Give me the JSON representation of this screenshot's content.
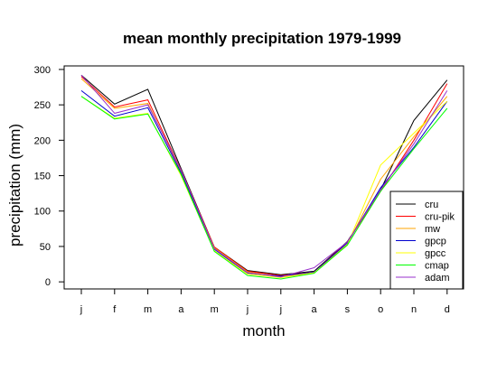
{
  "chart_data": {
    "type": "line",
    "title": "mean monthly precipitation 1979-1999",
    "xlabel": "month",
    "ylabel": "precipitation (mm)",
    "categories": [
      "j",
      "f",
      "m",
      "a",
      "m",
      "j",
      "j",
      "a",
      "s",
      "o",
      "n",
      "d"
    ],
    "ylim": [
      -10,
      305
    ],
    "yticks": [
      0,
      50,
      100,
      150,
      200,
      250,
      300
    ],
    "legend_position": "bottom-right",
    "grid": false,
    "series": [
      {
        "name": "cru",
        "color": "#000000",
        "values": [
          292,
          251,
          272,
          160,
          49,
          16,
          10,
          15,
          57,
          130,
          228,
          285
        ]
      },
      {
        "name": "cru-pik",
        "color": "#ff0000",
        "values": [
          290,
          247,
          257,
          158,
          49,
          15,
          9,
          14,
          56,
          128,
          200,
          280
        ]
      },
      {
        "name": "mw",
        "color": "#ffa500",
        "values": [
          287,
          245,
          252,
          156,
          48,
          14,
          7,
          13,
          53,
          145,
          205,
          262
        ]
      },
      {
        "name": "gpcp",
        "color": "#0000cd",
        "values": [
          270,
          234,
          246,
          154,
          46,
          12,
          8,
          14,
          55,
          133,
          190,
          255
        ]
      },
      {
        "name": "gpcc",
        "color": "#ffff00",
        "values": [
          262,
          231,
          238,
          150,
          44,
          11,
          6,
          13,
          52,
          165,
          210,
          255
        ]
      },
      {
        "name": "cmap",
        "color": "#00ff00",
        "values": [
          262,
          230,
          237,
          152,
          43,
          9,
          4,
          12,
          52,
          128,
          188,
          245
        ]
      },
      {
        "name": "adam",
        "color": "#9932cc",
        "values": [
          292,
          238,
          250,
          158,
          47,
          13,
          7,
          20,
          56,
          130,
          195,
          270
        ]
      }
    ]
  }
}
